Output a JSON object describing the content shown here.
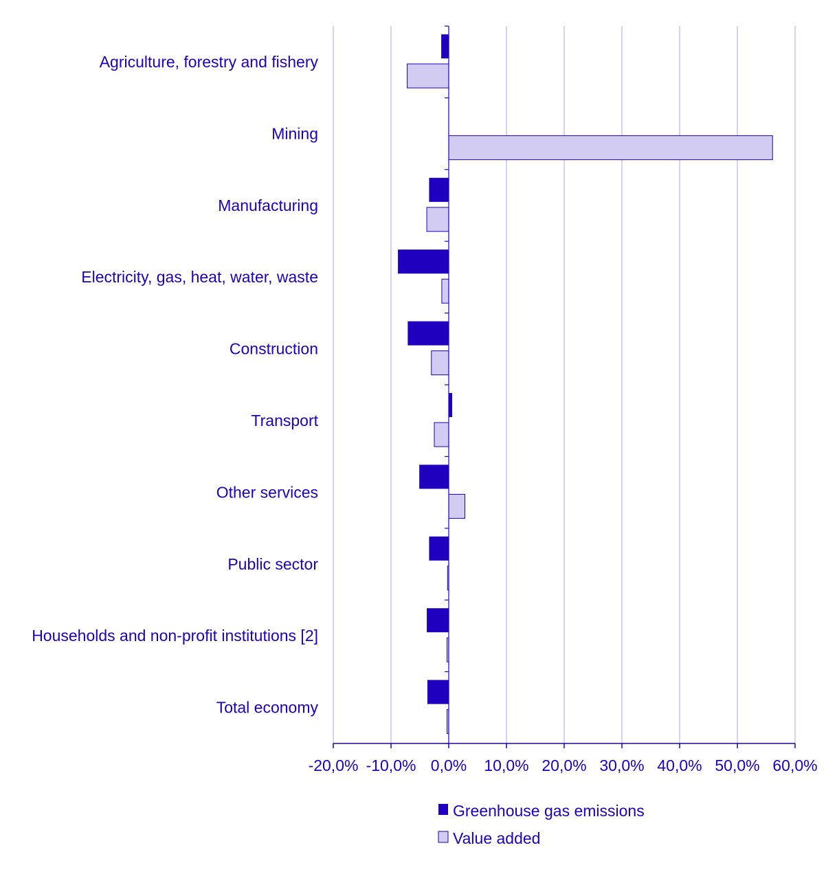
{
  "chart_data": {
    "type": "bar",
    "orientation": "horizontal",
    "title": "",
    "xlabel": "",
    "ylabel": "",
    "xlim": [
      -20,
      60
    ],
    "x_ticks": [
      -20,
      -10,
      0,
      10,
      20,
      30,
      40,
      50,
      60
    ],
    "x_tick_labels": [
      "-20,0%",
      "-10,0%",
      "0,0%",
      "10,0%",
      "20,0%",
      "30,0%",
      "40,0%",
      "50,0%",
      "60,0%"
    ],
    "grid": "vertical",
    "legend_position": "bottom",
    "categories": [
      "Agriculture, forestry and fishery",
      "Mining",
      "Manufacturing",
      "Electricity, gas, heat, water, waste",
      "Construction",
      "Transport",
      "Other services",
      "Public sector",
      "Households and non-profit institutions [2]",
      "Total economy"
    ],
    "series": [
      {
        "name": "Greenhouse gas emissions",
        "color": "#1e00be",
        "values": [
          -1.3,
          0.0,
          -3.4,
          -8.8,
          -7.1,
          0.6,
          -5.1,
          -3.4,
          -3.8,
          -3.7
        ]
      },
      {
        "name": "Value added",
        "color": "#d2ccf2",
        "values": [
          -7.2,
          56.1,
          -3.8,
          -1.2,
          -3.0,
          -2.5,
          2.8,
          -0.2,
          -0.3,
          -0.3
        ]
      }
    ]
  },
  "colors": {
    "text": "#1e00be",
    "grid": "#c9c4f0",
    "axis": "#1e00be",
    "bar_outline": "#1e00be"
  }
}
